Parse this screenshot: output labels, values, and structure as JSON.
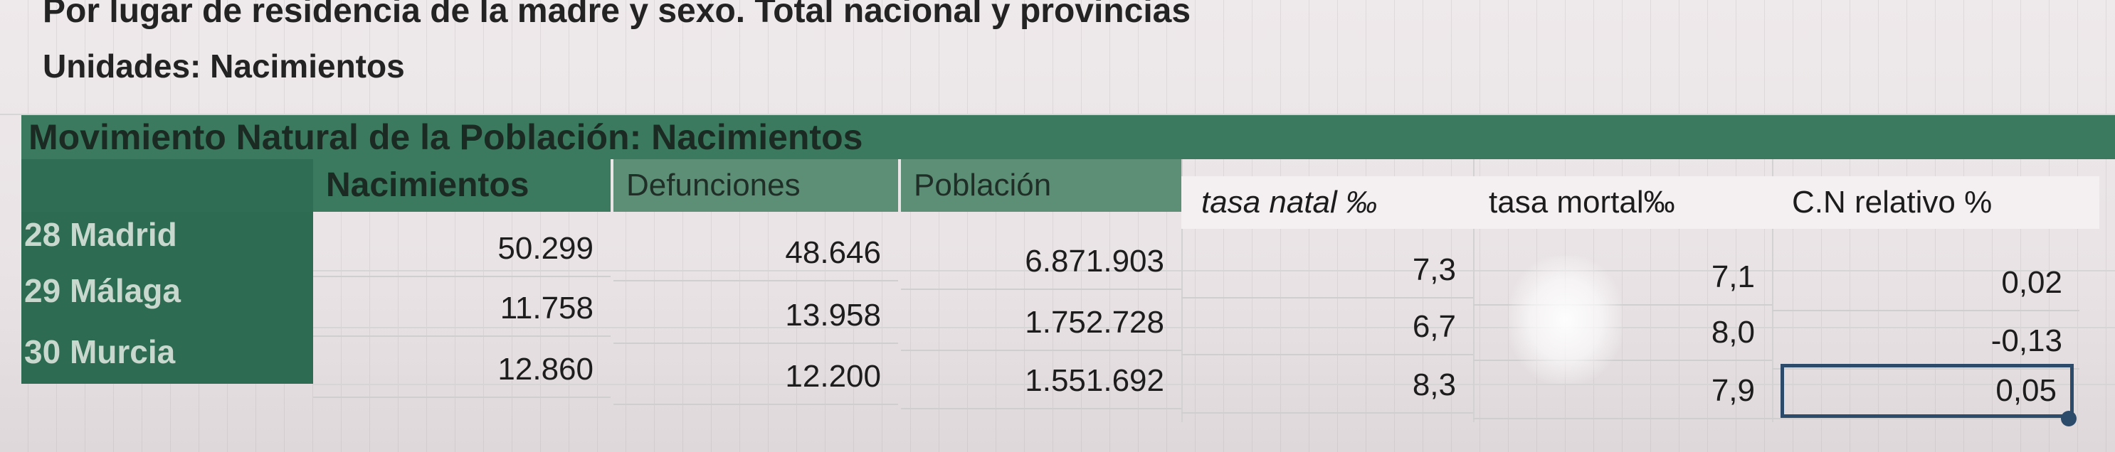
{
  "header": {
    "subtitle": "Por lugar de residencia de la madre y sexo. Total nacional y provincias",
    "units": "Unidades: Nacimientos"
  },
  "table": {
    "banner": "Movimiento Natural de la Población: Nacimientos",
    "columns": [
      "Nacimientos",
      "Defunciones",
      "Población",
      "tasa natal ‰",
      "tasa mortal‰",
      "C.N relativo %"
    ],
    "rows": [
      {
        "code": "28",
        "name": "Madrid",
        "values": [
          "50.299",
          "48.646",
          "6.871.903",
          "7,3",
          "7,1",
          "0,02"
        ]
      },
      {
        "code": "29",
        "name": "Málaga",
        "values": [
          "11.758",
          "13.958",
          "1.752.728",
          "6,7",
          "8,0",
          "-0,13"
        ]
      },
      {
        "code": "30",
        "name": "Murcia",
        "values": [
          "12.860",
          "12.200",
          "1.551.692",
          "8,3",
          "7,9",
          "0,05"
        ]
      }
    ]
  },
  "selection": {
    "cell": "C.N relativo % — Murcia"
  }
}
